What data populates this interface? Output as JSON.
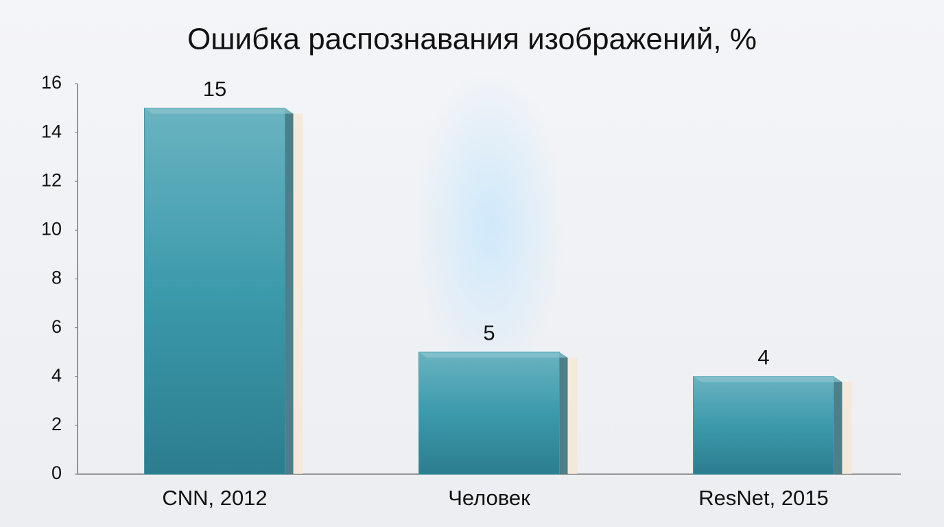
{
  "chart_data": {
    "type": "bar",
    "title": "Ошибка распознавания изображений, %",
    "categories": [
      "CNN, 2012",
      "Человек",
      "ResNet, 2015"
    ],
    "values": [
      15,
      5,
      4
    ],
    "color": "#3a9bab",
    "ylim": [
      0,
      16
    ],
    "yticks": [
      0,
      2,
      4,
      6,
      8,
      10,
      12,
      14,
      16
    ],
    "grid": false
  }
}
